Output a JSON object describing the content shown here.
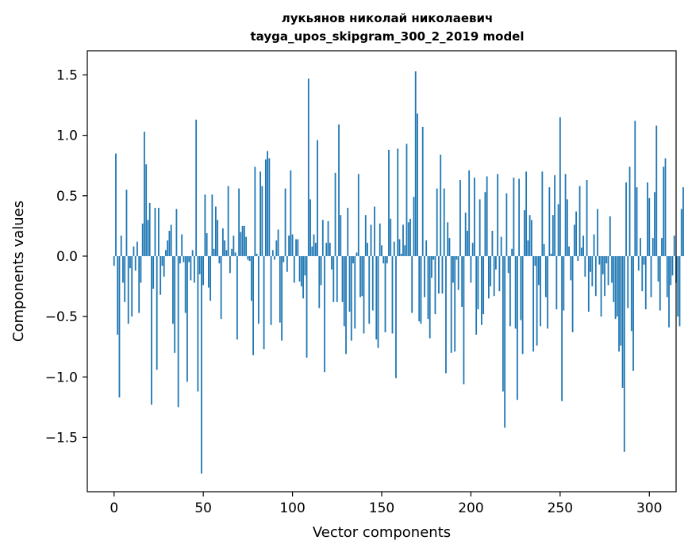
{
  "chart_data": {
    "type": "bar",
    "title": "лукьянов николай николаевич",
    "subtitle": "tayga_upos_skipgram_300_2_2019 model",
    "xlabel": "Vector components",
    "ylabel": "Components values",
    "xlim": [
      -15,
      315
    ],
    "ylim": [
      -1.95,
      1.7
    ],
    "x_ticks": [
      0,
      50,
      100,
      150,
      200,
      250,
      300
    ],
    "x_tick_labels": [
      "0",
      "50",
      "100",
      "150",
      "200",
      "250",
      "300"
    ],
    "y_ticks": [
      -1.5,
      -1.0,
      -0.5,
      0.0,
      0.5,
      1.0,
      1.5
    ],
    "y_tick_labels": [
      "−1.5",
      "−1.0",
      "−0.5",
      "0.0",
      "0.5",
      "1.0",
      "1.5"
    ],
    "grid": false,
    "bar_color": "#1f77b4",
    "values": [
      -0.08,
      0.85,
      -0.65,
      -1.17,
      0.17,
      -0.22,
      -0.38,
      0.55,
      -0.56,
      -0.1,
      -0.5,
      0.08,
      -0.12,
      0.12,
      -0.47,
      -0.22,
      0.27,
      1.03,
      0.76,
      0.3,
      0.44,
      -1.23,
      -0.27,
      0.4,
      -0.94,
      0.4,
      -0.32,
      -0.08,
      -0.17,
      0.05,
      0.13,
      0.21,
      0.26,
      -0.56,
      -0.8,
      0.39,
      -1.25,
      -0.06,
      0.18,
      -0.05,
      -0.47,
      -1.04,
      -0.05,
      -0.2,
      0.05,
      -0.22,
      1.13,
      -1.12,
      -0.15,
      -1.8,
      -0.24,
      0.51,
      0.19,
      -0.26,
      -0.37,
      0.51,
      0.06,
      0.41,
      0.3,
      -0.06,
      -0.52,
      0.23,
      0.13,
      0.05,
      0.58,
      -0.14,
      0.06,
      0.17,
      0.03,
      -0.69,
      0.56,
      0.2,
      0.25,
      0.25,
      0.16,
      -0.03,
      -0.04,
      -0.37,
      -0.82,
      0.74,
      0.02,
      -0.56,
      0.7,
      0.58,
      -0.77,
      0.8,
      0.87,
      0.81,
      -0.57,
      0.05,
      -0.03,
      0.13,
      0.22,
      -0.55,
      -0.7,
      -0.05,
      0.56,
      -0.13,
      0.17,
      0.71,
      0.18,
      -0.22,
      0.14,
      0.14,
      -0.21,
      -0.25,
      -0.35,
      -0.16,
      -0.84,
      1.47,
      0.47,
      0.08,
      0.18,
      0.11,
      0.96,
      -0.43,
      -0.24,
      0.3,
      -0.96,
      0.11,
      0.29,
      0.11,
      -0.11,
      -0.38,
      0.69,
      -0.38,
      1.09,
      0.34,
      -0.38,
      -0.58,
      -0.81,
      0.4,
      -0.46,
      -0.7,
      -0.06,
      -0.6,
      0.03,
      0.68,
      -0.34,
      -0.33,
      -0.64,
      0.34,
      0.11,
      -0.56,
      0.26,
      -0.45,
      0.41,
      -0.69,
      -0.76,
      0.27,
      0.09,
      -0.06,
      -0.63,
      -0.06,
      0.88,
      0.31,
      -0.64,
      0.12,
      -1.01,
      0.89,
      0.14,
      0.02,
      0.26,
      0.09,
      0.93,
      0.28,
      0.31,
      -0.47,
      0.49,
      1.53,
      1.18,
      -0.54,
      -0.56,
      1.07,
      -0.34,
      0.13,
      -0.52,
      -0.68,
      -0.18,
      -0.03,
      -0.48,
      0.56,
      -0.31,
      0.84,
      -0.31,
      0.56,
      -0.97,
      0.28,
      0.15,
      -0.8,
      -0.22,
      -0.79,
      -0.03,
      -0.28,
      0.63,
      -0.42,
      -1.06,
      0.36,
      0.21,
      0.71,
      -0.22,
      0.11,
      0.65,
      -0.65,
      -0.44,
      0.47,
      -0.57,
      -0.48,
      0.53,
      0.66,
      -0.35,
      -0.25,
      0.21,
      -0.33,
      -0.11,
      0.68,
      -0.29,
      0.16,
      -1.12,
      -1.42,
      0.52,
      -0.14,
      -0.58,
      0.06,
      0.65,
      -0.6,
      -1.19,
      0.64,
      -0.53,
      -0.81,
      0.38,
      0.7,
      0.13,
      0.34,
      0.3,
      -0.79,
      -0.08,
      -0.74,
      -0.24,
      -0.58,
      0.7,
      0.1,
      -0.34,
      -0.6,
      0.57,
      0.02,
      0.34,
      0.67,
      -0.44,
      0.43,
      1.15,
      -1.2,
      -0.45,
      0.68,
      0.47,
      0.08,
      -0.2,
      -0.63,
      0.26,
      0.37,
      -0.04,
      0.58,
      0.07,
      0.17,
      -0.17,
      0.63,
      -0.46,
      -0.13,
      -0.25,
      0.18,
      -0.33,
      0.39,
      -0.07,
      -0.5,
      -0.15,
      -0.33,
      -0.06,
      -0.24,
      0.33,
      -0.22,
      -0.38,
      -0.52,
      -0.5,
      -0.79,
      -0.74,
      -1.09,
      -1.62,
      0.61,
      -0.43,
      0.74,
      -0.62,
      -0.95,
      1.12,
      0.57,
      -0.12,
      0.15,
      -0.29,
      -0.07,
      -0.44,
      0.61,
      0.48,
      -0.34,
      0.15,
      0.53,
      1.08,
      -0.21,
      -0.45,
      0.15,
      0.74,
      0.81,
      -0.34,
      -0.59,
      -0.24,
      -0.16,
      0.17,
      -0.22,
      -0.5,
      -0.58,
      0.39,
      0.57
    ]
  }
}
